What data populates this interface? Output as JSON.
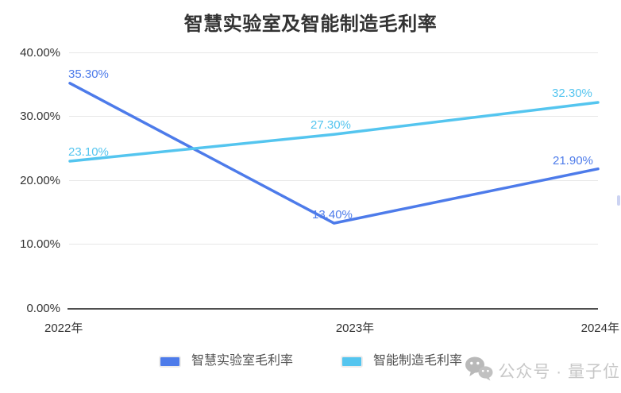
{
  "title": "智慧实验室及智能制造毛利率",
  "chart_data": {
    "type": "line",
    "categories": [
      "2022年",
      "2023年",
      "2024年"
    ],
    "series": [
      {
        "name": "智慧实验室毛利率",
        "color": "#4d7bea",
        "values": [
          35.3,
          13.4,
          21.9
        ],
        "point_labels": [
          "35.30%",
          "13.40%",
          "21.90%"
        ]
      },
      {
        "name": "智能制造毛利率",
        "color": "#54c5ef",
        "values": [
          23.1,
          27.3,
          32.3
        ],
        "point_labels": [
          "23.10%",
          "27.30%",
          "32.30%"
        ]
      }
    ],
    "ylim": [
      0,
      40
    ],
    "yticks": [
      "40.00%",
      "30.00%",
      "20.00%",
      "10.00%",
      "0.00%"
    ],
    "grid": true,
    "legend_position": "bottom"
  },
  "watermark": {
    "icon": "wechat-icon",
    "text": "公众号 · 量子位"
  }
}
